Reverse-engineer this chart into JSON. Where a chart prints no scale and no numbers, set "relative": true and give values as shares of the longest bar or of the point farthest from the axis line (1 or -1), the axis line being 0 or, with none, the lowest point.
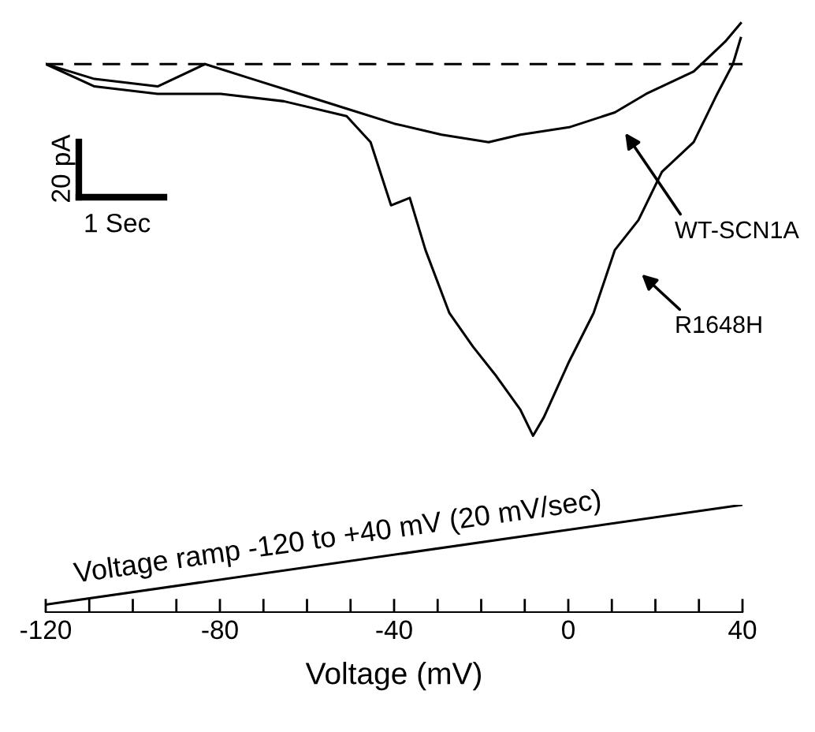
{
  "chart_data": [
    {
      "type": "line",
      "relative": true,
      "xlim": [
        -120,
        40
      ],
      "tick_labels": false,
      "legend": false,
      "grid": false,
      "marker": "none",
      "line_style": "solid",
      "series": [
        {
          "color": "#000000",
          "x": [
            -120,
            -108.8,
            -94.3,
            -83.4,
            -72.6,
            -61.7,
            -50.9,
            -40,
            -29.1,
            -18.3,
            -11,
            0.2,
            10.7,
            17.9,
            28.8,
            36,
            39.6
          ],
          "values": [
            0,
            -0.04,
            -0.06,
            0,
            -0.04,
            -0.08,
            -0.12,
            -0.16,
            -0.19,
            -0.21,
            -0.19,
            -0.17,
            -0.13,
            -0.08,
            -0.02,
            0.06,
            0.11
          ]
        },
        {
          "color": "#000000",
          "x": [
            -120,
            -108.8,
            -94.3,
            -79.8,
            -65.3,
            -50.9,
            -45.4,
            -40.7,
            -36.4,
            -32.8,
            -27.3,
            -21.9,
            -16.5,
            -11,
            -8.1,
            -5.6,
            0.2,
            5.8,
            10.7,
            16.1,
            21.5,
            28.8,
            34.2,
            37.8,
            39.6
          ],
          "values": [
            0,
            -0.06,
            -0.08,
            -0.08,
            -0.1,
            -0.14,
            -0.21,
            -0.38,
            -0.36,
            -0.5,
            -0.67,
            -0.76,
            -0.84,
            -0.93,
            -1,
            -0.95,
            -0.8,
            -0.67,
            -0.5,
            -0.42,
            -0.29,
            -0.21,
            -0.08,
            0,
            0.07
          ]
        }
      ],
      "ref_lines": [
        {
          "axis": "y",
          "value": 0,
          "color": "#000000",
          "line_style": "dashed"
        }
      ],
      "annotations": [
        "20 pA",
        "1 Sec",
        "WT-SCN1A",
        "R1648H"
      ]
    },
    {
      "type": "line",
      "relative": true,
      "xlim": [
        -120,
        40
      ],
      "xlabel": "Voltage (mV)",
      "tick_labels": "x",
      "legend": false,
      "grid": false,
      "marker": "none",
      "line_style": "solid",
      "xticks": [
        -120,
        {
          "value": -110,
          "label": null
        },
        {
          "value": -100,
          "label": null
        },
        {
          "value": -90,
          "label": null
        },
        -80,
        {
          "value": -70,
          "label": null
        },
        {
          "value": -60,
          "label": null
        },
        {
          "value": -50,
          "label": null
        },
        -40,
        {
          "value": -30,
          "label": null
        },
        {
          "value": -20,
          "label": null
        },
        {
          "value": -10,
          "label": null
        },
        0,
        {
          "value": 10,
          "label": null
        },
        {
          "value": 20,
          "label": null
        },
        {
          "value": 30,
          "label": null
        },
        40
      ],
      "series": [
        {
          "color": "#000000",
          "x": [
            -120,
            40
          ],
          "values": [
            0.07,
            1
          ]
        }
      ],
      "annotations": [
        "Voltage ramp -120 to +40 mV (20 mV/sec)"
      ]
    }
  ]
}
